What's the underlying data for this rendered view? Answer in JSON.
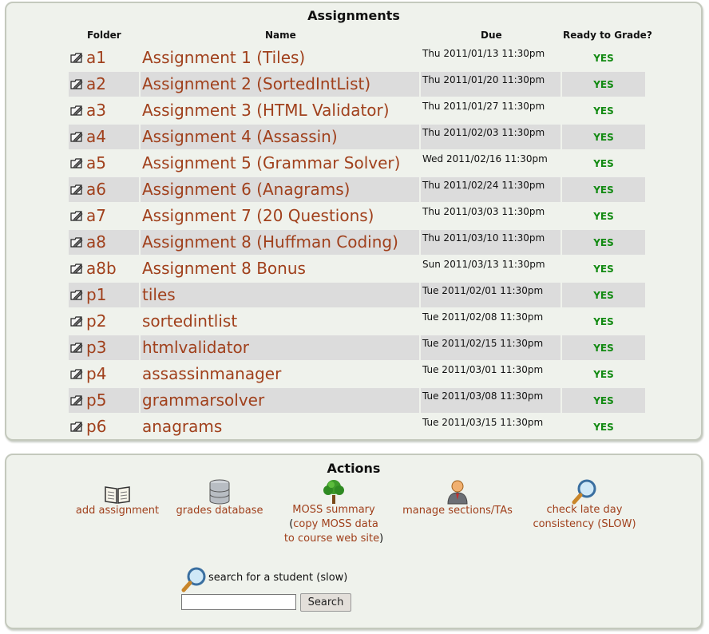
{
  "assignments": {
    "title": "Assignments",
    "headers": {
      "folder": "Folder",
      "name": "Name",
      "due": "Due",
      "ready": "Ready to Grade?"
    },
    "rows": [
      {
        "folder": "a1",
        "name": "Assignment 1 (Tiles)",
        "due": "Thu 2011/01/13 11:30pm",
        "ready": "YES"
      },
      {
        "folder": "a2",
        "name": "Assignment 2 (SortedIntList)",
        "due": "Thu 2011/01/20 11:30pm",
        "ready": "YES"
      },
      {
        "folder": "a3",
        "name": "Assignment 3 (HTML Validator)",
        "due": "Thu 2011/01/27 11:30pm",
        "ready": "YES"
      },
      {
        "folder": "a4",
        "name": "Assignment 4 (Assassin)",
        "due": "Thu 2011/02/03 11:30pm",
        "ready": "YES"
      },
      {
        "folder": "a5",
        "name": "Assignment 5 (Grammar Solver)",
        "due": "Wed 2011/02/16 11:30pm",
        "ready": "YES"
      },
      {
        "folder": "a6",
        "name": "Assignment 6 (Anagrams)",
        "due": "Thu 2011/02/24 11:30pm",
        "ready": "YES"
      },
      {
        "folder": "a7",
        "name": "Assignment 7 (20 Questions)",
        "due": "Thu 2011/03/03 11:30pm",
        "ready": "YES"
      },
      {
        "folder": "a8",
        "name": "Assignment 8 (Huffman Coding)",
        "due": "Thu 2011/03/10 11:30pm",
        "ready": "YES"
      },
      {
        "folder": "a8b",
        "name": "Assignment 8 Bonus",
        "due": "Sun 2011/03/13 11:30pm",
        "ready": "YES"
      },
      {
        "folder": "p1",
        "name": "tiles",
        "due": "Tue 2011/02/01 11:30pm",
        "ready": "YES"
      },
      {
        "folder": "p2",
        "name": "sortedintlist",
        "due": "Tue 2011/02/08 11:30pm",
        "ready": "YES"
      },
      {
        "folder": "p3",
        "name": "htmlvalidator",
        "due": "Tue 2011/02/15 11:30pm",
        "ready": "YES"
      },
      {
        "folder": "p4",
        "name": "assassinmanager",
        "due": "Tue 2011/03/01 11:30pm",
        "ready": "YES"
      },
      {
        "folder": "p5",
        "name": "grammarsolver",
        "due": "Tue 2011/03/08 11:30pm",
        "ready": "YES"
      },
      {
        "folder": "p6",
        "name": "anagrams",
        "due": "Tue 2011/03/15 11:30pm",
        "ready": "YES"
      }
    ]
  },
  "actions": {
    "title": "Actions",
    "add_assignment": "add assignment",
    "grades_database": "grades database",
    "moss_summary": "MOSS summary",
    "moss_copy_open": "(",
    "moss_copy_line1": "copy MOSS data",
    "moss_copy_line2": "to course web site",
    "moss_copy_close": ")",
    "manage_sections": "manage sections/TAs",
    "check_late_line1": "check late day",
    "check_late_line2": "consistency (SLOW)",
    "search_label": "search for a student (slow)",
    "search_value": "",
    "search_button": "Search"
  },
  "colors": {
    "link": "#a0401c",
    "ready": "#128a12",
    "row_shade": "#dcdcdc",
    "panel_bg": "#eff2ec"
  }
}
